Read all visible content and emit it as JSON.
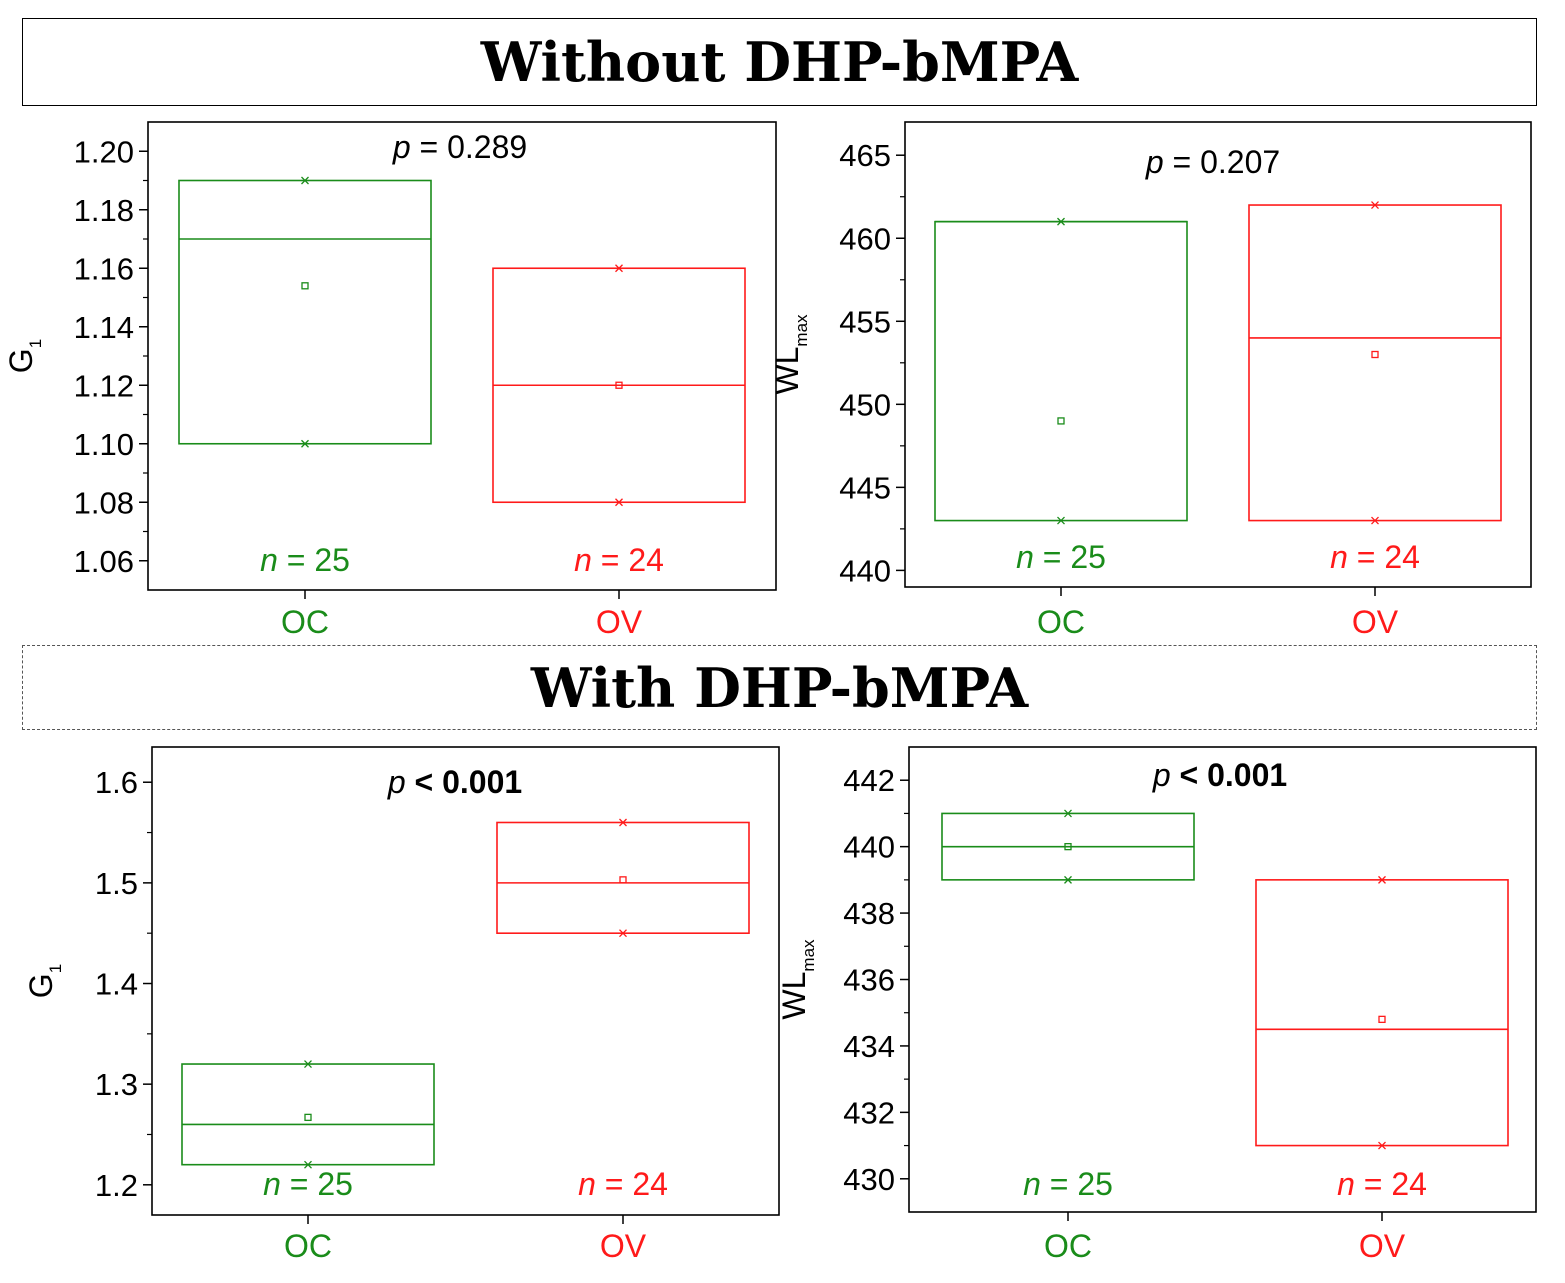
{
  "colors": {
    "oc": "#1a8c1a",
    "ov": "#ff1a1a",
    "axis": "#000000"
  },
  "sections": [
    {
      "title": "Without DHP-bMPA",
      "border": "solid"
    },
    {
      "title": "With DHP-bMPA",
      "border": "dashed"
    }
  ],
  "chart_data": [
    {
      "type": "box",
      "section": "Without DHP-bMPA",
      "title": "",
      "ylabel": "G",
      "ylabel_sub": "1",
      "ylim": [
        1.05,
        1.21
      ],
      "yticks": [
        1.06,
        1.08,
        1.1,
        1.12,
        1.14,
        1.16,
        1.18,
        1.2
      ],
      "ytick_labels": [
        "1.06",
        "1.08",
        "1.10",
        "1.12",
        "1.14",
        "1.16",
        "1.18",
        "1.20"
      ],
      "categories": [
        "OC",
        "OV"
      ],
      "p_label": "p",
      "p_value": "= 0.289",
      "p_bold": false,
      "boxes": [
        {
          "category": "OC",
          "q1": 1.1,
          "median": 1.17,
          "q3": 1.19,
          "mean": 1.154,
          "min": 1.1,
          "max": 1.19,
          "n_label": "n",
          "n_value": "= 25"
        },
        {
          "category": "OV",
          "q1": 1.08,
          "median": 1.12,
          "q3": 1.16,
          "mean": 1.12,
          "min": 1.08,
          "max": 1.16,
          "n_label": "n",
          "n_value": "= 24"
        }
      ]
    },
    {
      "type": "box",
      "section": "Without DHP-bMPA",
      "title": "",
      "ylabel": "WL",
      "ylabel_sub": "max",
      "ylim": [
        439,
        467
      ],
      "yticks": [
        440,
        445,
        450,
        455,
        460,
        465
      ],
      "ytick_labels": [
        "440",
        "445",
        "450",
        "455",
        "460",
        "465"
      ],
      "categories": [
        "OC",
        "OV"
      ],
      "p_label": "p",
      "p_value": "= 0.207",
      "p_bold": false,
      "boxes": [
        {
          "category": "OC",
          "q1": 443,
          "median": 461,
          "q3": 461,
          "mean": 449,
          "min": 443,
          "max": 461,
          "n_label": "n",
          "n_value": "= 25"
        },
        {
          "category": "OV",
          "q1": 443,
          "median": 454,
          "q3": 462,
          "mean": 453,
          "min": 443,
          "max": 462,
          "n_label": "n",
          "n_value": "= 24"
        }
      ]
    },
    {
      "type": "box",
      "section": "With DHP-bMPA",
      "title": "",
      "ylabel": "G",
      "ylabel_sub": "1",
      "ylim": [
        1.17,
        1.635
      ],
      "yticks": [
        1.2,
        1.3,
        1.4,
        1.5,
        1.6
      ],
      "ytick_labels": [
        "1.2",
        "1.3",
        "1.4",
        "1.5",
        "1.6"
      ],
      "categories": [
        "OC",
        "OV"
      ],
      "p_label": "p",
      "p_value": "< 0.001",
      "p_bold": true,
      "boxes": [
        {
          "category": "OC",
          "q1": 1.22,
          "median": 1.26,
          "q3": 1.32,
          "mean": 1.267,
          "min": 1.22,
          "max": 1.32,
          "n_label": "n",
          "n_value": "= 25"
        },
        {
          "category": "OV",
          "q1": 1.45,
          "median": 1.5,
          "q3": 1.56,
          "mean": 1.503,
          "min": 1.45,
          "max": 1.56,
          "n_label": "n",
          "n_value": "= 24"
        }
      ]
    },
    {
      "type": "box",
      "section": "With DHP-bMPA",
      "title": "",
      "ylabel": "WL",
      "ylabel_sub": "max",
      "ylim": [
        429,
        443
      ],
      "yticks": [
        430,
        432,
        434,
        436,
        438,
        440,
        442
      ],
      "ytick_labels": [
        "430",
        "432",
        "434",
        "436",
        "438",
        "440",
        "442"
      ],
      "categories": [
        "OC",
        "OV"
      ],
      "p_label": "p",
      "p_value": "< 0.001",
      "p_bold": true,
      "boxes": [
        {
          "category": "OC",
          "q1": 439,
          "median": 440,
          "q3": 441,
          "mean": 440,
          "min": 439,
          "max": 441,
          "n_label": "n",
          "n_value": "= 25"
        },
        {
          "category": "OV",
          "q1": 431,
          "median": 434.5,
          "q3": 439,
          "mean": 434.8,
          "min": 431,
          "max": 439,
          "n_label": "n",
          "n_value": "= 24"
        }
      ]
    }
  ]
}
